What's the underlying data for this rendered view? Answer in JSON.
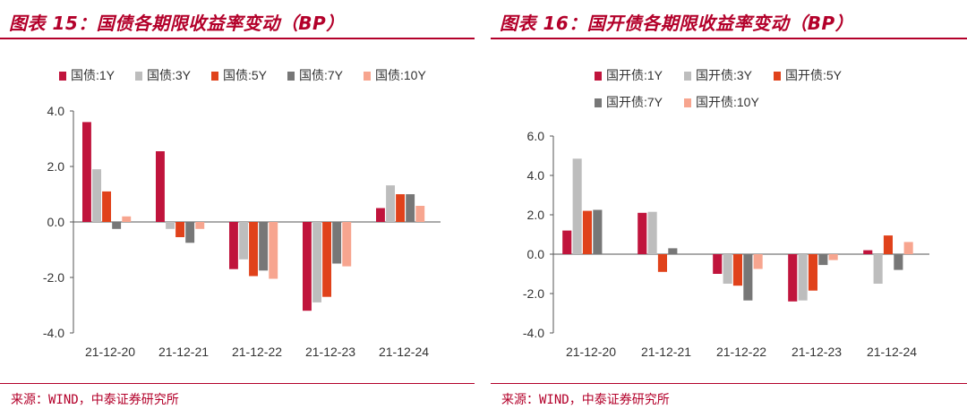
{
  "colors": {
    "accent": "#b3002a"
  },
  "panels": [
    {
      "title": "图表 15：国债各期限收益率变动（BP）",
      "source": "来源：WIND，中泰证券研究所"
    },
    {
      "title": "图表 16：国开债各期限收益率变动（BP）",
      "source": "来源：WIND，中泰证券研究所"
    }
  ],
  "chart_data": [
    {
      "type": "bar",
      "title": "图表 15：国债各期限收益率变动（BP）",
      "categories": [
        "21-12-20",
        "21-12-21",
        "21-12-22",
        "21-12-23",
        "21-12-24"
      ],
      "ylim": [
        -4.0,
        4.0
      ],
      "yticks": [
        4.0,
        2.0,
        0.0,
        -2.0,
        -4.0
      ],
      "ytick_labels": [
        "4.0",
        "2.0",
        "0.0",
        "-2.0",
        "-4.0"
      ],
      "grid": false,
      "legend_position": "top",
      "series": [
        {
          "name": "国债:1Y",
          "color": "#c0143c",
          "values": [
            3.6,
            2.55,
            -1.7,
            -3.2,
            0.5
          ]
        },
        {
          "name": "国债:3Y",
          "color": "#bdbdbd",
          "values": [
            1.9,
            -0.25,
            -1.35,
            -2.9,
            1.32
          ]
        },
        {
          "name": "国债:5Y",
          "color": "#e0421b",
          "values": [
            1.1,
            -0.55,
            -1.95,
            -2.7,
            1.0
          ]
        },
        {
          "name": "国债:7Y",
          "color": "#777777",
          "values": [
            -0.25,
            -0.75,
            -1.75,
            -1.5,
            1.0
          ]
        },
        {
          "name": "国债:10Y",
          "color": "#f7a58f",
          "values": [
            0.2,
            -0.25,
            -2.05,
            -1.6,
            0.58
          ]
        }
      ]
    },
    {
      "type": "bar",
      "title": "图表 16：国开债各期限收益率变动（BP）",
      "categories": [
        "21-12-20",
        "21-12-21",
        "21-12-22",
        "21-12-23",
        "21-12-24"
      ],
      "ylim": [
        -4.0,
        6.0
      ],
      "yticks": [
        6.0,
        4.0,
        2.0,
        0.0,
        -2.0,
        -4.0
      ],
      "ytick_labels": [
        "6.0",
        "4.0",
        "2.0",
        "0.0",
        "-2.0",
        "-4.0"
      ],
      "grid": false,
      "legend_position": "top",
      "series": [
        {
          "name": "国开债:1Y",
          "color": "#c0143c",
          "values": [
            1.2,
            2.1,
            -1.0,
            -2.4,
            0.2
          ]
        },
        {
          "name": "国开债:3Y",
          "color": "#bdbdbd",
          "values": [
            4.85,
            2.15,
            -1.5,
            -2.35,
            -1.5
          ]
        },
        {
          "name": "国开债:5Y",
          "color": "#e0421b",
          "values": [
            2.2,
            -0.9,
            -1.6,
            -1.85,
            0.95
          ]
        },
        {
          "name": "国开债:7Y",
          "color": "#777777",
          "values": [
            2.25,
            0.3,
            -2.35,
            -0.55,
            -0.8
          ]
        },
        {
          "name": "国开债:10Y",
          "color": "#f7a58f",
          "values": [
            0.0,
            0.0,
            -0.75,
            -0.3,
            0.62
          ]
        }
      ]
    }
  ]
}
